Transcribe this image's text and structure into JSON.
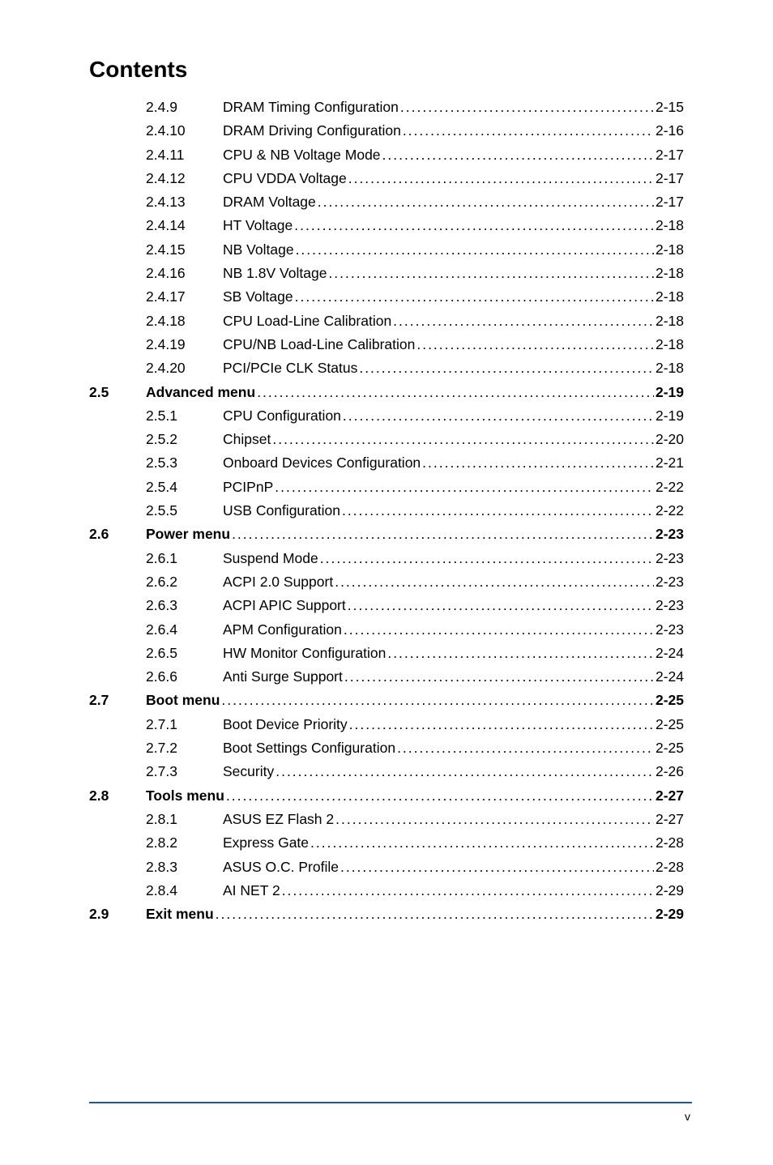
{
  "page": {
    "title": "Contents",
    "footer_page": "v",
    "colors": {
      "text": "#000000",
      "background": "#ffffff",
      "rule": "#0b4a8a"
    },
    "typography": {
      "title_fontsize_pt": 21,
      "body_fontsize_pt": 13,
      "font_family": "Arial"
    }
  },
  "toc": [
    {
      "section": "",
      "sub": "2.4.9",
      "label": "DRAM Timing Configuration",
      "page": "2-15",
      "bold": false
    },
    {
      "section": "",
      "sub": "2.4.10",
      "label": "DRAM Driving Configuration",
      "page": "2-16",
      "bold": false
    },
    {
      "section": "",
      "sub": "2.4.11",
      "label": "CPU & NB Voltage Mode",
      "page": "2-17",
      "bold": false
    },
    {
      "section": "",
      "sub": "2.4.12",
      "label": "CPU VDDA Voltage",
      "page": "2-17",
      "bold": false
    },
    {
      "section": "",
      "sub": "2.4.13",
      "label": "DRAM Voltage",
      "page": "2-17",
      "bold": false
    },
    {
      "section": "",
      "sub": "2.4.14",
      "label": "HT Voltage",
      "page": "2-18",
      "bold": false
    },
    {
      "section": "",
      "sub": "2.4.15",
      "label": "NB Voltage",
      "page": "2-18",
      "bold": false
    },
    {
      "section": "",
      "sub": "2.4.16",
      "label": "NB 1.8V Voltage",
      "page": "2-18",
      "bold": false
    },
    {
      "section": "",
      "sub": "2.4.17",
      "label": "SB Voltage",
      "page": "2-18",
      "bold": false
    },
    {
      "section": "",
      "sub": "2.4.18",
      "label": "CPU Load-Line Calibration",
      "page": "2-18",
      "bold": false
    },
    {
      "section": "",
      "sub": "2.4.19",
      "label": "CPU/NB Load-Line Calibration",
      "page": "2-18",
      "bold": false
    },
    {
      "section": "",
      "sub": "2.4.20",
      "label": "PCI/PCIe CLK Status",
      "page": "2-18",
      "bold": false
    },
    {
      "section": "2.5",
      "sub": "",
      "label": "Advanced menu",
      "page": "2-19",
      "bold": true
    },
    {
      "section": "",
      "sub": "2.5.1",
      "label": "CPU Configuration",
      "page": "2-19",
      "bold": false
    },
    {
      "section": "",
      "sub": "2.5.2",
      "label": "Chipset",
      "page": "2-20",
      "bold": false
    },
    {
      "section": "",
      "sub": "2.5.3",
      "label": "Onboard Devices Configuration",
      "page": "2-21",
      "bold": false
    },
    {
      "section": "",
      "sub": "2.5.4",
      "label": "PCIPnP",
      "page": "2-22",
      "bold": false
    },
    {
      "section": "",
      "sub": "2.5.5",
      "label": "USB Configuration",
      "page": "2-22",
      "bold": false
    },
    {
      "section": "2.6",
      "sub": "",
      "label": "Power menu",
      "page": "2-23",
      "bold": true
    },
    {
      "section": "",
      "sub": "2.6.1",
      "label": "Suspend Mode",
      "page": "2-23",
      "bold": false
    },
    {
      "section": "",
      "sub": "2.6.2",
      "label": "ACPI 2.0 Support",
      "page": "2-23",
      "bold": false
    },
    {
      "section": "",
      "sub": "2.6.3",
      "label": "ACPI APIC Support",
      "page": "2-23",
      "bold": false
    },
    {
      "section": "",
      "sub": "2.6.4",
      "label": "APM Configuration",
      "page": "2-23",
      "bold": false
    },
    {
      "section": "",
      "sub": "2.6.5",
      "label": "HW Monitor Configuration",
      "page": "2-24",
      "bold": false
    },
    {
      "section": "",
      "sub": "2.6.6",
      "label": "Anti Surge Support",
      "page": "2-24",
      "bold": false
    },
    {
      "section": "2.7",
      "sub": "",
      "label": "Boot menu",
      "page": "2-25",
      "bold": true
    },
    {
      "section": "",
      "sub": "2.7.1",
      "label": "Boot Device Priority",
      "page": "2-25",
      "bold": false
    },
    {
      "section": "",
      "sub": "2.7.2",
      "label": "Boot Settings Configuration",
      "page": "2-25",
      "bold": false
    },
    {
      "section": "",
      "sub": "2.7.3",
      "label": "Security",
      "page": "2-26",
      "bold": false
    },
    {
      "section": "2.8",
      "sub": "",
      "label": "Tools menu",
      "page": "2-27",
      "bold": true
    },
    {
      "section": "",
      "sub": "2.8.1",
      "label": "ASUS EZ Flash 2",
      "page": "2-27",
      "bold": false
    },
    {
      "section": "",
      "sub": "2.8.2",
      "label": "Express Gate",
      "page": "2-28",
      "bold": false
    },
    {
      "section": "",
      "sub": "2.8.3",
      "label": "ASUS O.C. Profile",
      "page": "2-28",
      "bold": false
    },
    {
      "section": "",
      "sub": "2.8.4",
      "label": "AI NET 2",
      "page": "2-29",
      "bold": false
    },
    {
      "section": "2.9",
      "sub": "",
      "label": "Exit menu",
      "page": "2-29",
      "bold": true
    }
  ]
}
